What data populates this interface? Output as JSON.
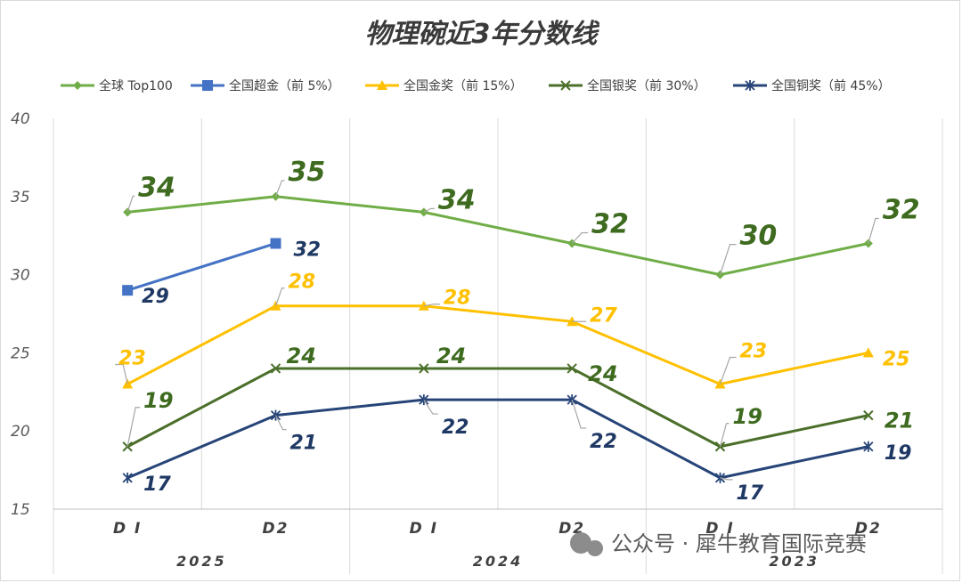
{
  "chart_data": {
    "type": "line",
    "title": "物理碗近3年分数线",
    "categories": [
      "D1",
      "D2",
      "D1",
      "D2",
      "D1",
      "D2"
    ],
    "category_labels": [
      "D I",
      "D2",
      "D I",
      "D2",
      "D I",
      "D2"
    ],
    "groups": [
      "2025",
      "2024",
      "2023"
    ],
    "ylim": [
      15,
      40
    ],
    "yticks": [
      15,
      20,
      25,
      30,
      35,
      40
    ],
    "grid": "vertical",
    "legend_position": "top",
    "series": [
      {
        "name": "全球 Top100",
        "color": "#70ad47",
        "marker": "diamond",
        "values": [
          34,
          35,
          34,
          32,
          30,
          32
        ]
      },
      {
        "name": "全国超金（前 5%）",
        "color": "#4472c4",
        "marker": "square",
        "values": [
          29,
          32,
          null,
          null,
          null,
          null
        ]
      },
      {
        "name": "全国金奖（前 15%）",
        "color": "#ffc000",
        "marker": "triangle",
        "values": [
          23,
          28,
          28,
          27,
          23,
          25
        ]
      },
      {
        "name": "全国银奖（前 30%）",
        "color": "#4b6f2a",
        "marker": "x",
        "values": [
          19,
          24,
          24,
          24,
          19,
          21
        ]
      },
      {
        "name": "全国铜奖（前 45%）",
        "color": "#264478",
        "marker": "star",
        "values": [
          17,
          21,
          22,
          22,
          17,
          19
        ]
      }
    ]
  },
  "watermark": "公众号 · 犀牛教育国际竞赛"
}
